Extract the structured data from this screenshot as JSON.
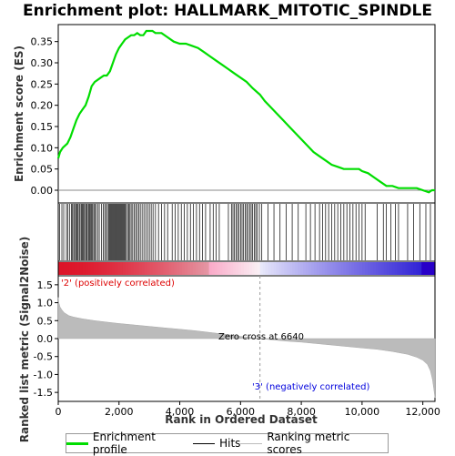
{
  "chart_data": [
    {
      "type": "line",
      "title": "Enrichment plot: HALLMARK_MITOTIC_SPINDLE",
      "ylabel": "Enrichment score (ES)",
      "ylim": [
        -0.03,
        0.39
      ],
      "yticks": [
        "0.00",
        "0.05",
        "0.10",
        "0.15",
        "0.20",
        "0.25",
        "0.30",
        "0.35"
      ],
      "series": [
        {
          "name": "Enrichment profile",
          "color": "#00dd00",
          "x": [
            0,
            60,
            150,
            300,
            400,
            500,
            600,
            700,
            800,
            900,
            1000,
            1100,
            1200,
            1300,
            1400,
            1500,
            1600,
            1700,
            1800,
            1900,
            2000,
            2100,
            2200,
            2300,
            2400,
            2500,
            2600,
            2700,
            2800,
            2900,
            3000,
            3100,
            3200,
            3400,
            3600,
            3800,
            4000,
            4200,
            4400,
            4600,
            4800,
            5000,
            5200,
            5400,
            5600,
            5800,
            6000,
            6200,
            6400,
            6640,
            6800,
            7000,
            7200,
            7400,
            7600,
            7800,
            8000,
            8200,
            8400,
            8600,
            8800,
            9000,
            9200,
            9400,
            9600,
            9800,
            9900,
            10000,
            10200,
            10400,
            10600,
            10800,
            11000,
            11200,
            11400,
            11600,
            11800,
            12000,
            12200,
            12300,
            12400
          ],
          "y": [
            0.075,
            0.09,
            0.1,
            0.11,
            0.125,
            0.145,
            0.165,
            0.18,
            0.19,
            0.2,
            0.22,
            0.245,
            0.255,
            0.26,
            0.265,
            0.27,
            0.27,
            0.28,
            0.3,
            0.32,
            0.335,
            0.345,
            0.355,
            0.36,
            0.365,
            0.365,
            0.37,
            0.365,
            0.365,
            0.375,
            0.375,
            0.375,
            0.37,
            0.37,
            0.36,
            0.35,
            0.345,
            0.345,
            0.34,
            0.335,
            0.325,
            0.315,
            0.305,
            0.295,
            0.285,
            0.275,
            0.265,
            0.255,
            0.24,
            0.225,
            0.21,
            0.195,
            0.18,
            0.165,
            0.15,
            0.135,
            0.12,
            0.105,
            0.09,
            0.08,
            0.07,
            0.06,
            0.055,
            0.05,
            0.05,
            0.05,
            0.05,
            0.045,
            0.04,
            0.03,
            0.02,
            0.01,
            0.01,
            0.005,
            0.005,
            0.005,
            0.005,
            0.0,
            -0.005,
            0.0,
            0.0
          ]
        }
      ]
    },
    {
      "type": "scatter",
      "name": "Hits",
      "x": [
        50,
        120,
        180,
        270,
        320,
        380,
        430,
        470,
        510,
        540,
        580,
        620,
        650,
        690,
        720,
        760,
        790,
        830,
        860,
        900,
        930,
        960,
        1000,
        1030,
        1070,
        1100,
        1130,
        1170,
        1200,
        1240,
        1300,
        1350,
        1420,
        1480,
        1530,
        1580,
        1620,
        1660,
        1690,
        1720,
        1750,
        1780,
        1810,
        1840,
        1870,
        1900,
        1930,
        1960,
        1990,
        2020,
        2050,
        2080,
        2110,
        2140,
        2170,
        2200,
        2240,
        2280,
        2320,
        2360,
        2400,
        2450,
        2500,
        2550,
        2600,
        2650,
        2700,
        2760,
        2820,
        2880,
        2940,
        3000,
        3060,
        3120,
        3200,
        3300,
        3400,
        3500,
        3600,
        3750,
        3850,
        3950,
        4050,
        4150,
        4250,
        4350,
        4450,
        4550,
        4650,
        4750,
        4850,
        5000,
        5100,
        5200,
        5300,
        5600,
        5700,
        5750,
        5800,
        5850,
        5900,
        5950,
        6000,
        6050,
        6100,
        6150,
        6200,
        6250,
        6300,
        6350,
        6400,
        6450,
        6500,
        6550,
        6620,
        6700,
        6900,
        7100,
        7300,
        7500,
        7700,
        7900,
        8150,
        8300,
        8450,
        8600,
        8700,
        8800,
        8900,
        9000,
        9100,
        9200,
        9300,
        9400,
        9500,
        9600,
        9700,
        9800,
        9900,
        10000,
        10100,
        10500,
        10700,
        10800,
        10950,
        11100,
        11200,
        11500,
        11700,
        11900,
        12100,
        12250
      ]
    },
    {
      "type": "area",
      "ylabel": "Ranked list metric (Signal2Noise)",
      "xlabel": "Rank in Ordered Dataset",
      "ylim": [
        -1.75,
        1.75
      ],
      "yticks": [
        "-1.5",
        "-1.0",
        "-0.5",
        "0.0",
        "0.5",
        "1.0",
        "1.5"
      ],
      "xticks": [
        "0",
        "2,000",
        "4,000",
        "6,000",
        "8,000",
        "10,000",
        "12,000"
      ],
      "x": [
        0,
        20,
        60,
        120,
        200,
        350,
        500,
        800,
        1200,
        1600,
        2000,
        2500,
        3000,
        3500,
        4000,
        4500,
        5000,
        5500,
        6000,
        6640,
        7000,
        7500,
        8000,
        8500,
        9000,
        9500,
        10000,
        10500,
        11000,
        11500,
        11800,
        12000,
        12150,
        12250,
        12320,
        12360,
        12400
      ],
      "y": [
        1.15,
        1.0,
        0.88,
        0.8,
        0.72,
        0.64,
        0.6,
        0.55,
        0.5,
        0.46,
        0.42,
        0.38,
        0.34,
        0.3,
        0.26,
        0.22,
        0.17,
        0.12,
        0.06,
        0.0,
        -0.03,
        -0.07,
        -0.1,
        -0.14,
        -0.18,
        -0.22,
        -0.26,
        -0.3,
        -0.36,
        -0.44,
        -0.52,
        -0.6,
        -0.72,
        -0.9,
        -1.15,
        -1.4,
        -1.65
      ]
    }
  ],
  "annotations": {
    "zero_cross": "Zero cross at 6640",
    "positive": "'2' (positively correlated)",
    "negative": "'3' (negatively correlated)"
  },
  "legend": {
    "profile": "Enrichment profile",
    "hits": "Hits",
    "ranking": "Ranking metric scores"
  },
  "colors": {
    "profile": "#00dd00",
    "positive": "#dd0000",
    "negative": "#0000dd",
    "metric_fill": "#bbbbbb"
  },
  "x_max": 12400
}
